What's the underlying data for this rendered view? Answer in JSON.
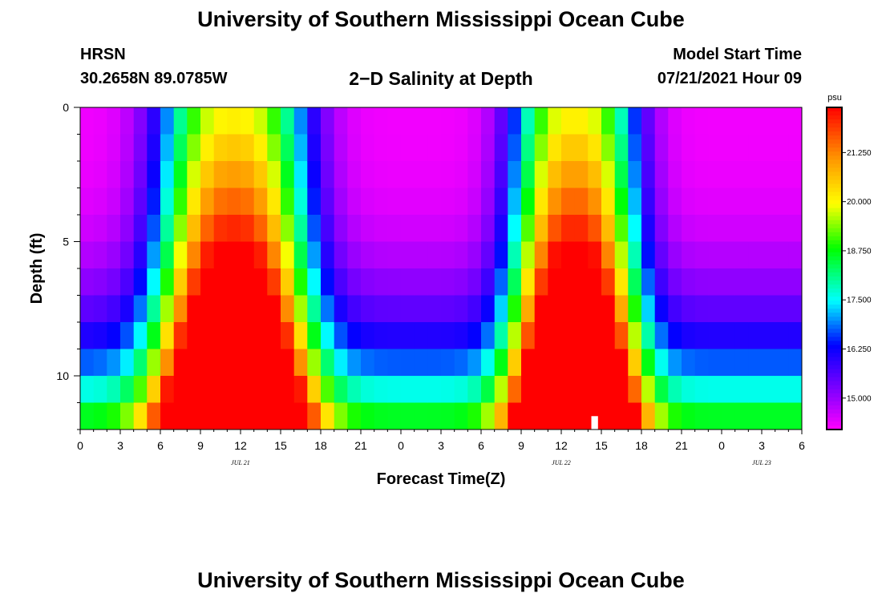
{
  "header": {
    "title": "University of Southern Mississippi Ocean Cube",
    "station": "HRSN",
    "coords": "30.2658N  89.0785W",
    "plot_title": "2−D Salinity at Depth",
    "model_label": "Model Start Time",
    "model_time": "07/21/2021 Hour 09"
  },
  "footer": {
    "title": "University of Southern Mississippi Ocean Cube"
  },
  "chart_data": {
    "type": "heatmap",
    "title": "2-D Salinity at Depth",
    "xlabel": "Forecast Time(Z)",
    "ylabel": "Depth (ft)",
    "x_hours": [
      0,
      54
    ],
    "y_depth_ft": [
      0,
      12
    ],
    "x_tick_labels": [
      "0",
      "3",
      "6",
      "9",
      "12",
      "15",
      "18",
      "21",
      "0",
      "3",
      "6",
      "9",
      "12",
      "15",
      "18",
      "21",
      "0",
      "3",
      "6"
    ],
    "y_tick_labels": [
      "0",
      "5",
      "10"
    ],
    "y_tick_values": [
      0,
      5,
      10
    ],
    "date_labels": [
      {
        "label": "JUL 21",
        "hour": 12
      },
      {
        "label": "JUL 22",
        "hour": 36
      },
      {
        "label": "JUL 23",
        "hour": 51
      }
    ],
    "colorbar": {
      "unit": "psu",
      "range": [
        14.2,
        22.4
      ],
      "tick_labels": [
        "21.250",
        "20.000",
        "18.750",
        "17.500",
        "16.250",
        "15.000"
      ],
      "tick_values": [
        21.25,
        20.0,
        18.75,
        17.5,
        16.25,
        15.0
      ]
    },
    "model": {
      "base_psu": 14.3,
      "bottom_psu": 19.2,
      "high_tides": [
        {
          "center_hour": 11.5,
          "half_width_hours": 5.5,
          "peak_psu": 22.4
        },
        {
          "center_hour": 37.0,
          "half_width_hours": 4.6,
          "peak_psu": 22.4
        }
      ],
      "missing_value_hour": 38.5,
      "missing_value_depth_ft": 11.75
    }
  }
}
